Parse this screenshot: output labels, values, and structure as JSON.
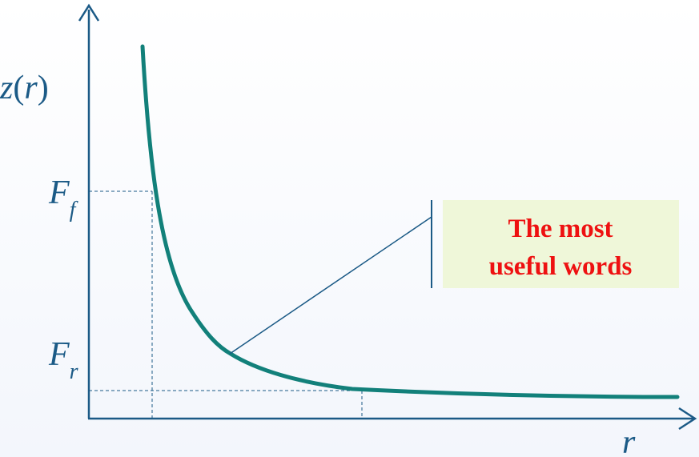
{
  "labels": {
    "y_axis_var": "z",
    "y_axis_arg": "r",
    "x_axis": "r",
    "ff_main": "F",
    "ff_sub": "f",
    "fr_main": "F",
    "fr_sub": "r"
  },
  "callout": {
    "line1": "The most",
    "line2": "useful words"
  },
  "colors": {
    "axis": "#1b5a86",
    "curve": "#12807a",
    "callout_bg": "#eff7d9",
    "callout_text": "#ee1111"
  }
}
